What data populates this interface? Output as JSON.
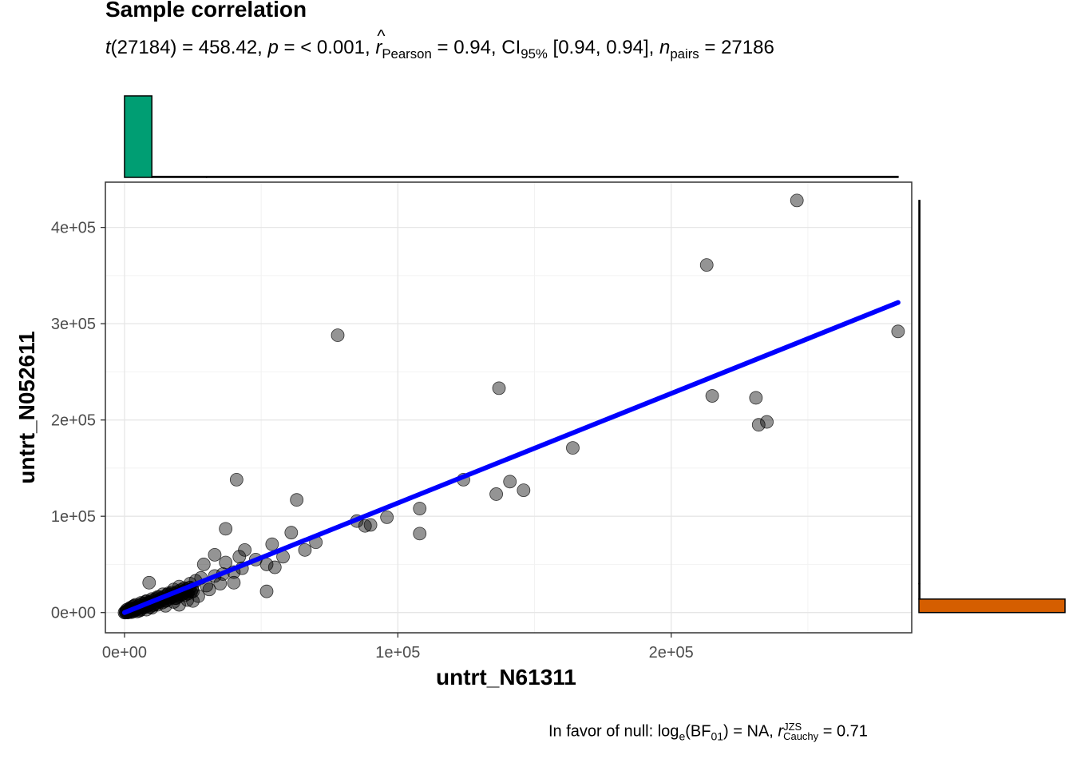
{
  "chart_data": {
    "type": "scatter",
    "title": "Sample correlation",
    "subtitle": {
      "t_df": "27184",
      "t_value": "458.42",
      "p": "< 0.001",
      "r_method": "Pearson",
      "r": "0.94",
      "ci_label": "95%",
      "ci": "[0.94, 0.94]",
      "n_label": "pairs",
      "n": "27186"
    },
    "caption": {
      "prefix": "In favor of null: log",
      "log_base": "e",
      "bf": "BF",
      "bf_sub": "01",
      "bf_value": "= NA,",
      "r_sup": "JZS",
      "r_sub": "Cauchy",
      "r_value": "= 0.71"
    },
    "xlabel": "untrt_N61311",
    "ylabel": "untrt_N052611",
    "xlim": [
      -7000,
      288000
    ],
    "ylim": [
      -21000,
      447000
    ],
    "x_ticks": [
      {
        "value": 0,
        "label": "0e+00"
      },
      {
        "value": 100000,
        "label": "1e+05"
      },
      {
        "value": 200000,
        "label": "2e+05"
      }
    ],
    "y_ticks": [
      {
        "value": 0,
        "label": "0e+00"
      },
      {
        "value": 100000,
        "label": "1e+05"
      },
      {
        "value": 200000,
        "label": "2e+05"
      },
      {
        "value": 300000,
        "label": "3e+05"
      },
      {
        "value": 400000,
        "label": "4e+05"
      }
    ],
    "grid": true,
    "regression_line": {
      "x": [
        0,
        283000
      ],
      "y": [
        0,
        322000
      ],
      "color": "#0000ff"
    },
    "points": [
      [
        246000,
        428000
      ],
      [
        213000,
        361000
      ],
      [
        283000,
        292000
      ],
      [
        78000,
        288000
      ],
      [
        137000,
        233000
      ],
      [
        215000,
        225000
      ],
      [
        231000,
        223000
      ],
      [
        235000,
        198000
      ],
      [
        232000,
        195000
      ],
      [
        164000,
        171000
      ],
      [
        124000,
        138000
      ],
      [
        41000,
        138000
      ],
      [
        141000,
        136000
      ],
      [
        146000,
        127000
      ],
      [
        136000,
        123000
      ],
      [
        63000,
        117000
      ],
      [
        108000,
        108000
      ],
      [
        96000,
        99000
      ],
      [
        85000,
        95000
      ],
      [
        88000,
        90000
      ],
      [
        90000,
        91000
      ],
      [
        37000,
        87000
      ],
      [
        108000,
        82000
      ],
      [
        61000,
        83000
      ],
      [
        70000,
        73000
      ],
      [
        54000,
        71000
      ],
      [
        66000,
        65000
      ],
      [
        44000,
        65000
      ],
      [
        58000,
        58000
      ],
      [
        33000,
        60000
      ],
      [
        42000,
        58000
      ],
      [
        48000,
        55000
      ],
      [
        52000,
        50000
      ],
      [
        37000,
        52000
      ],
      [
        29000,
        50000
      ],
      [
        55000,
        47000
      ],
      [
        43000,
        46000
      ],
      [
        40000,
        42000
      ],
      [
        36000,
        40000
      ],
      [
        33000,
        38000
      ],
      [
        28000,
        36000
      ],
      [
        26000,
        33000
      ],
      [
        24000,
        30000
      ],
      [
        20000,
        27000
      ],
      [
        52000,
        22000
      ],
      [
        40000,
        31000
      ],
      [
        9000,
        31000
      ],
      [
        30000,
        28000
      ],
      [
        18000,
        24000
      ],
      [
        16000,
        20000
      ],
      [
        14000,
        19000
      ],
      [
        12000,
        16000
      ],
      [
        10000,
        14000
      ],
      [
        8000,
        12000
      ],
      [
        6000,
        10000
      ],
      [
        4000,
        8000
      ],
      [
        3000,
        6000
      ],
      [
        2000,
        4000
      ],
      [
        1000,
        2000
      ],
      [
        500,
        1000
      ],
      [
        22000,
        18000
      ],
      [
        19000,
        15000
      ],
      [
        15000,
        12000
      ],
      [
        11000,
        9000
      ],
      [
        7000,
        6000
      ],
      [
        5000,
        4000
      ],
      [
        3500,
        3000
      ],
      [
        2500,
        2000
      ],
      [
        1500,
        1000
      ],
      [
        800,
        500
      ],
      [
        25000,
        22000
      ],
      [
        21000,
        20000
      ],
      [
        17000,
        16000
      ],
      [
        13000,
        13000
      ],
      [
        9000,
        10000
      ],
      [
        6500,
        7000
      ],
      [
        4500,
        5000
      ],
      [
        2800,
        3500
      ],
      [
        1800,
        2500
      ],
      [
        12000,
        8000
      ],
      [
        18000,
        11000
      ],
      [
        23000,
        13000
      ],
      [
        27000,
        17000
      ],
      [
        31000,
        24000
      ],
      [
        35000,
        30000
      ],
      [
        10000,
        5000
      ],
      [
        15000,
        7000
      ],
      [
        8000,
        3000
      ],
      [
        5500,
        2000
      ],
      [
        3000,
        1000
      ],
      [
        20000,
        8000
      ],
      [
        25000,
        12000
      ]
    ],
    "top_marginal": {
      "fill": "#009e73",
      "bins": [
        {
          "x0": 0,
          "x1": 10000,
          "height": 1.0
        },
        {
          "x0": 10000,
          "x1": 30000,
          "height": 0.01
        },
        {
          "x0": 30000,
          "x1": 283000,
          "height": 0.004
        }
      ]
    },
    "right_marginal": {
      "fill": "#d55e00",
      "bins": [
        {
          "y0": 0,
          "y1": 14000,
          "height": 1.0
        },
        {
          "y0": 14000,
          "y1": 30000,
          "height": 0.005
        },
        {
          "y0": 30000,
          "y1": 428000,
          "height": 0.002
        }
      ]
    }
  }
}
